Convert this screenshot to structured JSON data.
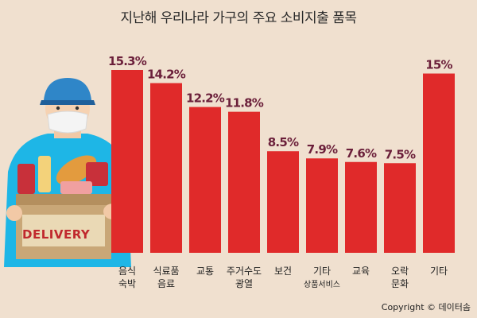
{
  "title": "지난해 우리나라 가구의 주요 소비지출 품목",
  "copyright": "Copyright © 데이터솜",
  "illustration": {
    "box_text": "DELIVERY"
  },
  "colors": {
    "bar": "#e02a2a",
    "value_label": "#6b1f3a",
    "background": "#f0e0cf"
  },
  "chart_data": {
    "type": "bar",
    "title": "지난해 우리나라 가구의 주요 소비지출 품목",
    "xlabel": "",
    "ylabel": "",
    "ylim": [
      0,
      17
    ],
    "grid": false,
    "categories": [
      [
        "음식",
        "숙박"
      ],
      [
        "식료품",
        "음료"
      ],
      [
        "교통"
      ],
      [
        "주거수도",
        "광열"
      ],
      [
        "보건"
      ],
      [
        "기타",
        "상품서비스"
      ],
      [
        "교육"
      ],
      [
        "오락",
        "문화"
      ],
      [
        "기타"
      ]
    ],
    "values": [
      15.3,
      14.2,
      12.2,
      11.8,
      8.5,
      7.9,
      7.6,
      7.5,
      15
    ],
    "value_labels": [
      "15.3%",
      "14.2%",
      "12.2%",
      "11.8%",
      "8.5%",
      "7.9%",
      "7.6%",
      "7.5%",
      "15%"
    ]
  }
}
